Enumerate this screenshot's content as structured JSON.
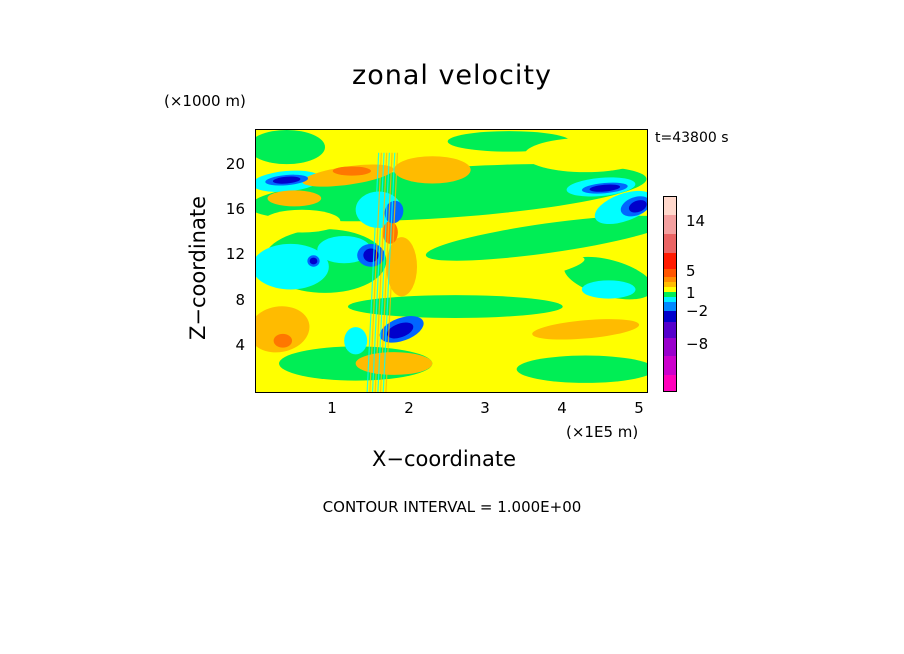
{
  "chart_data": {
    "type": "heatmap",
    "title": "zonal velocity",
    "xlabel": "X−coordinate",
    "ylabel": "Z−coordinate",
    "x_unit_label": "(×1E5 m)",
    "y_unit_label": "(×1000 m)",
    "time_label": "t=43800 s",
    "footnote": "CONTOUR INTERVAL = 1.000E+00",
    "xlim": [
      0,
      5.1
    ],
    "ylim": [
      0,
      23
    ],
    "x_ticks": [
      "1",
      "2",
      "3",
      "4",
      "5"
    ],
    "y_ticks": [
      "4",
      "8",
      "12",
      "16",
      "20"
    ],
    "colorbar": {
      "tick_labels": [
        "14",
        "5",
        "1",
        "−2",
        "−8"
      ],
      "levels_top_to_bottom": [
        {
          "color": "#ffd8cc"
        },
        {
          "color": "#f4a0a0"
        },
        {
          "color": "#ea6464"
        },
        {
          "color": "#ff1a00"
        },
        {
          "color": "#ff5500"
        },
        {
          "color": "#ff8c00"
        },
        {
          "color": "#ffbb00"
        },
        {
          "color": "#ffff00"
        },
        {
          "color": "#00ee55"
        },
        {
          "color": "#00f0ff"
        },
        {
          "color": "#0088ff"
        },
        {
          "color": "#0000cc"
        },
        {
          "color": "#5500cc"
        },
        {
          "color": "#9900cc"
        },
        {
          "color": "#cc00cc"
        },
        {
          "color": "#ff00bb"
        }
      ]
    },
    "field_colors": {
      "strong_negative": "#0000cc",
      "negative": "#0066ff",
      "weak_negative": "#00ffff",
      "near_zero": "#00ee55",
      "weak_positive": "#ffff00",
      "positive": "#ffbb00",
      "strong_positive": "#ff7700"
    },
    "regions": [
      {
        "x": 0.5,
        "z": 10.5,
        "label": "weak_negative"
      },
      {
        "x": 0.35,
        "z": 18.5,
        "label": "strong_negative"
      },
      {
        "x": 1.2,
        "z": 19.0,
        "label": "positive"
      },
      {
        "x": 1.5,
        "z": 12.0,
        "label": "strong_negative"
      },
      {
        "x": 1.9,
        "z": 5.5,
        "label": "strong_negative"
      },
      {
        "x": 1.8,
        "z": 16.0,
        "label": "strong_negative"
      },
      {
        "x": 4.8,
        "z": 16.5,
        "label": "strong_negative"
      },
      {
        "x": 4.5,
        "z": 18.0,
        "label": "strong_negative"
      },
      {
        "x": 4.2,
        "z": 20.5,
        "label": "weak_positive"
      },
      {
        "x": 3.5,
        "z": 10.0,
        "label": "weak_positive"
      },
      {
        "x": 0.4,
        "z": 5.0,
        "label": "positive"
      },
      {
        "x": 3.8,
        "z": 1.5,
        "label": "weak_positive"
      }
    ]
  }
}
